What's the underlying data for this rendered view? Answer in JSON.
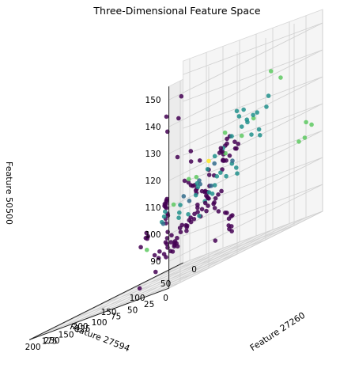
{
  "chart_data": {
    "type": "scatter",
    "projection": "3d",
    "title": "Three-Dimensional Feature Space",
    "xlabel": "Feature 27594",
    "ylabel": "Feature 27260",
    "zlabel": "Feature 50500",
    "xlim": [
      0,
      210
    ],
    "ylim": [
      0,
      270
    ],
    "zlim": [
      80,
      155
    ],
    "xticks": [
      0,
      25,
      50,
      75,
      100,
      125,
      150,
      175,
      200
    ],
    "yticks": [
      0,
      50,
      100,
      150,
      200,
      250
    ],
    "zticks": [
      90,
      100,
      110,
      120,
      130,
      140,
      150
    ],
    "grid": true,
    "colormap": "viridis",
    "colors": [
      "#440154",
      "#3b528b",
      "#21918c",
      "#5ec962",
      "#fde725"
    ],
    "points": [
      [
        31,
        212,
        148,
        0.0
      ],
      [
        38,
        230,
        143,
        0.0
      ],
      [
        42,
        204,
        140,
        0.0
      ],
      [
        45,
        220,
        137,
        0.0
      ],
      [
        27,
        200,
        126,
        0.0
      ],
      [
        35,
        214,
        126,
        0.0
      ],
      [
        22,
        190,
        121,
        0.0
      ],
      [
        30,
        196,
        122,
        0.0
      ],
      [
        18,
        178,
        114,
        0.0
      ],
      [
        16,
        172,
        113,
        0.0
      ],
      [
        19,
        206,
        113,
        0.0
      ],
      [
        14,
        188,
        107,
        0.0
      ],
      [
        10,
        166,
        106,
        0.0
      ],
      [
        20,
        160,
        105,
        0.0
      ],
      [
        13,
        175,
        103,
        0.0
      ],
      [
        8,
        180,
        101,
        0.0
      ],
      [
        11,
        170,
        99,
        0.0
      ],
      [
        26,
        184,
        100,
        0.0
      ],
      [
        7,
        160,
        97,
        0.0
      ],
      [
        18,
        150,
        97,
        0.0
      ],
      [
        5,
        155,
        95,
        0.0
      ],
      [
        21,
        140,
        94,
        0.0
      ],
      [
        9,
        148,
        95,
        0.0
      ],
      [
        6,
        158,
        92,
        0.0
      ],
      [
        12,
        146,
        91,
        0.0
      ],
      [
        15,
        142,
        89,
        0.0
      ],
      [
        24,
        136,
        90,
        0.0
      ],
      [
        33,
        150,
        88,
        0.0
      ],
      [
        47,
        170,
        112,
        0.0
      ],
      [
        52,
        175,
        114,
        0.0
      ],
      [
        54,
        158,
        110,
        0.0
      ],
      [
        62,
        170,
        115,
        0.0
      ],
      [
        58,
        144,
        108,
        0.0
      ],
      [
        68,
        152,
        112,
        0.0
      ],
      [
        70,
        140,
        108,
        0.0
      ],
      [
        40,
        176,
        110,
        0.0
      ],
      [
        60,
        130,
        104,
        0.0
      ],
      [
        72,
        122,
        107,
        0.0
      ],
      [
        76,
        110,
        108,
        0.0
      ],
      [
        63,
        118,
        101,
        0.0
      ],
      [
        82,
        124,
        103,
        0.0
      ],
      [
        88,
        100,
        104,
        0.0
      ],
      [
        92,
        112,
        100,
        0.0
      ],
      [
        95,
        96,
        106,
        0.0
      ],
      [
        84,
        90,
        102,
        0.0
      ],
      [
        99,
        86,
        103,
        0.0
      ],
      [
        104,
        80,
        100,
        0.0
      ],
      [
        110,
        74,
        105,
        0.0
      ],
      [
        115,
        70,
        98,
        0.0
      ],
      [
        120,
        66,
        101,
        0.0
      ],
      [
        125,
        80,
        97,
        0.0
      ],
      [
        130,
        60,
        99,
        0.0
      ],
      [
        138,
        70,
        96,
        0.0
      ],
      [
        142,
        54,
        100,
        0.0
      ],
      [
        150,
        50,
        98,
        0.0
      ],
      [
        155,
        66,
        96,
        0.0
      ],
      [
        160,
        45,
        97,
        0.0
      ],
      [
        165,
        58,
        95,
        0.0
      ],
      [
        170,
        36,
        96,
        0.0
      ],
      [
        176,
        44,
        93,
        0.0
      ],
      [
        180,
        28,
        94,
        0.0
      ],
      [
        186,
        22,
        92,
        0.0
      ],
      [
        192,
        16,
        94,
        0.0
      ],
      [
        196,
        10,
        93,
        0.0
      ],
      [
        100,
        140,
        92,
        0.0
      ],
      [
        110,
        150,
        90,
        0.0
      ],
      [
        118,
        136,
        93,
        0.0
      ],
      [
        126,
        128,
        88,
        0.0
      ],
      [
        134,
        116,
        91,
        0.0
      ],
      [
        140,
        104,
        89,
        0.0
      ],
      [
        146,
        96,
        92,
        0.0
      ],
      [
        152,
        86,
        88,
        0.0
      ],
      [
        158,
        76,
        90,
        0.0
      ],
      [
        164,
        68,
        91,
        0.0
      ],
      [
        172,
        60,
        89,
        0.0
      ],
      [
        178,
        52,
        90,
        0.0
      ],
      [
        184,
        40,
        88,
        0.0
      ],
      [
        190,
        34,
        91,
        0.0
      ],
      [
        80,
        60,
        117,
        0.0
      ],
      [
        86,
        48,
        118,
        0.0
      ],
      [
        92,
        56,
        115,
        0.0
      ],
      [
        98,
        40,
        119,
        0.0
      ],
      [
        104,
        30,
        116,
        0.0
      ],
      [
        112,
        44,
        114,
        0.0
      ],
      [
        120,
        36,
        117,
        0.0
      ],
      [
        128,
        24,
        113,
        0.0
      ],
      [
        136,
        20,
        118,
        0.0
      ],
      [
        144,
        32,
        112,
        0.0
      ],
      [
        60,
        98,
        121,
        0.0
      ],
      [
        66,
        86,
        123,
        0.0
      ],
      [
        72,
        94,
        119,
        0.0
      ],
      [
        78,
        80,
        120,
        0.0
      ],
      [
        84,
        70,
        122,
        0.0
      ],
      [
        90,
        76,
        118,
        0.0
      ],
      [
        50,
        116,
        118,
        0.0
      ],
      [
        44,
        124,
        116,
        0.0
      ],
      [
        38,
        132,
        113,
        0.0
      ],
      [
        56,
        104,
        115,
        0.0
      ],
      [
        140,
        110,
        109,
        0.0
      ],
      [
        150,
        100,
        107,
        0.0
      ],
      [
        158,
        90,
        108,
        0.0
      ],
      [
        166,
        84,
        106,
        0.0
      ],
      [
        172,
        74,
        107,
        0.0
      ],
      [
        180,
        66,
        105,
        0.0
      ],
      [
        188,
        58,
        106,
        0.0
      ],
      [
        194,
        48,
        104,
        0.0
      ],
      [
        130,
        120,
        103,
        0.0
      ],
      [
        122,
        130,
        104,
        0.0
      ],
      [
        114,
        142,
        101,
        0.0
      ],
      [
        106,
        152,
        103,
        0.0
      ],
      [
        96,
        160,
        98,
        0.0
      ],
      [
        90,
        168,
        96,
        0.0
      ],
      [
        160,
        120,
        98,
        0.0
      ],
      [
        168,
        112,
        97,
        0.0
      ],
      [
        176,
        104,
        99,
        0.0
      ],
      [
        184,
        96,
        97,
        0.0
      ],
      [
        200,
        86,
        94,
        0.0
      ],
      [
        104,
        200,
        82,
        0.0
      ],
      [
        140,
        130,
        84,
        0.0
      ],
      [
        74,
        200,
        93,
        0.0
      ],
      [
        68,
        186,
        97,
        0.0
      ],
      [
        82,
        180,
        95,
        0.0
      ],
      [
        90,
        190,
        92,
        0.0
      ],
      [
        96,
        176,
        90,
        0.0
      ],
      [
        110,
        30,
        112,
        0.35
      ],
      [
        150,
        40,
        108,
        0.35
      ],
      [
        175,
        30,
        103,
        0.35
      ],
      [
        185,
        64,
        99,
        0.35
      ],
      [
        136,
        58,
        110,
        0.35
      ],
      [
        120,
        50,
        114,
        0.35
      ],
      [
        168,
        48,
        106,
        0.35
      ],
      [
        130,
        44,
        106,
        0.35
      ],
      [
        60,
        40,
        118,
        0.5
      ],
      [
        70,
        30,
        120,
        0.5
      ],
      [
        84,
        24,
        126,
        0.5
      ],
      [
        96,
        20,
        124,
        0.5
      ],
      [
        108,
        16,
        123,
        0.5
      ],
      [
        118,
        22,
        121,
        0.5
      ],
      [
        76,
        50,
        130,
        0.5
      ],
      [
        66,
        56,
        126,
        0.5
      ],
      [
        54,
        62,
        120,
        0.5
      ],
      [
        100,
        34,
        130,
        0.5
      ],
      [
        88,
        44,
        128,
        0.5
      ],
      [
        124,
        30,
        118,
        0.5
      ],
      [
        140,
        26,
        116,
        0.5
      ],
      [
        156,
        20,
        112,
        0.5
      ],
      [
        146,
        50,
        109,
        0.5
      ],
      [
        162,
        30,
        107,
        0.5
      ],
      [
        172,
        22,
        104,
        0.5
      ],
      [
        180,
        40,
        103,
        0.5
      ],
      [
        190,
        30,
        100,
        0.5
      ],
      [
        196,
        24,
        98,
        0.5
      ],
      [
        70,
        70,
        110,
        0.5
      ],
      [
        80,
        66,
        112,
        0.5
      ],
      [
        92,
        62,
        108,
        0.5
      ],
      [
        104,
        58,
        110,
        0.5
      ],
      [
        116,
        54,
        106,
        0.5
      ],
      [
        128,
        50,
        104,
        0.5
      ],
      [
        60,
        80,
        108,
        0.5
      ],
      [
        82,
        90,
        110,
        0.5
      ],
      [
        94,
        84,
        104,
        0.5
      ],
      [
        112,
        76,
        102,
        0.5
      ],
      [
        160,
        90,
        104,
        0.5
      ],
      [
        170,
        80,
        102,
        0.5
      ],
      [
        182,
        70,
        100,
        0.5
      ],
      [
        100,
        100,
        98,
        0.5
      ],
      [
        120,
        96,
        100,
        0.5
      ],
      [
        30,
        60,
        132,
        0.5
      ],
      [
        40,
        52,
        128,
        0.5
      ],
      [
        90,
        10,
        126,
        0.5
      ],
      [
        52,
        30,
        140,
        0.75
      ],
      [
        46,
        20,
        136,
        0.75
      ],
      [
        104,
        50,
        124,
        0.75
      ],
      [
        150,
        60,
        112,
        0.75
      ],
      [
        44,
        70,
        126,
        0.75
      ],
      [
        130,
        70,
        112,
        0.75
      ],
      [
        96,
        30,
        120,
        0.75
      ],
      [
        112,
        40,
        116,
        0.75
      ],
      [
        8,
        10,
        114,
        0.75
      ],
      [
        6,
        22,
        116,
        0.75
      ],
      [
        10,
        30,
        110,
        0.75
      ],
      [
        20,
        8,
        110,
        0.75
      ],
      [
        196,
        80,
        92,
        0.75
      ],
      [
        130,
        110,
        106,
        0.75
      ],
      [
        120,
        60,
        116,
        1.0
      ]
    ]
  }
}
